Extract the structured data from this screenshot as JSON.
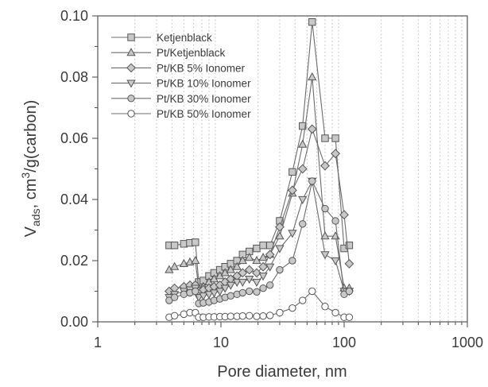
{
  "chart_data": {
    "type": "line",
    "xlabel": "Pore diameter, nm",
    "ylabel_main": "V",
    "ylabel_sub": "ads",
    "ylabel_rest": ", cm",
    "ylabel_sup": "3",
    "ylabel_tail": "/g(carbon)",
    "x_scale": "log",
    "xlim": [
      1,
      1000
    ],
    "ylim": [
      0,
      0.1
    ],
    "x_ticks": [
      1,
      10,
      100,
      1000
    ],
    "x_tick_labels": [
      "1",
      "10",
      "100",
      "1000"
    ],
    "y_ticks": [
      0,
      0.02,
      0.04,
      0.06,
      0.08,
      0.1
    ],
    "y_tick_labels": [
      "0.00",
      "0.02",
      "0.04",
      "0.06",
      "0.08",
      "0.10"
    ],
    "grid": "vertical dotted minor grid",
    "legend_position": "top-left",
    "series": [
      {
        "name": "Ketjenblack",
        "marker": "square",
        "fill": "#c8c8c8",
        "x": [
          3.8,
          4.2,
          5.0,
          5.6,
          6.2,
          6.6,
          7.2,
          8.0,
          8.8,
          9.8,
          10.8,
          12.0,
          13.5,
          15.0,
          17.0,
          19.5,
          22.0,
          25.0,
          30.0,
          38.0,
          46.0,
          55.0,
          70.0,
          85.0,
          100.0,
          110.0
        ],
        "y": [
          0.025,
          0.025,
          0.0255,
          0.0258,
          0.026,
          0.013,
          0.0135,
          0.015,
          0.016,
          0.017,
          0.018,
          0.019,
          0.02,
          0.022,
          0.023,
          0.024,
          0.025,
          0.025,
          0.033,
          0.049,
          0.064,
          0.098,
          0.06,
          0.06,
          0.024,
          0.025
        ]
      },
      {
        "name": "Pt/Ketjenblack",
        "marker": "triangle-up",
        "fill": "#c8c8c8",
        "x": [
          3.8,
          4.2,
          5.0,
          5.6,
          6.2,
          6.6,
          7.2,
          8.0,
          8.8,
          9.8,
          10.8,
          12.0,
          13.5,
          15.0,
          17.0,
          19.5,
          22.0,
          25.0,
          30.0,
          38.0,
          46.0,
          55.0,
          70.0,
          85.0,
          100.0,
          110.0
        ],
        "y": [
          0.017,
          0.018,
          0.019,
          0.0195,
          0.02,
          0.011,
          0.0115,
          0.013,
          0.014,
          0.015,
          0.016,
          0.017,
          0.018,
          0.02,
          0.021,
          0.02,
          0.021,
          0.022,
          0.028,
          0.042,
          0.058,
          0.08,
          0.028,
          0.028,
          0.011,
          0.011
        ]
      },
      {
        "name": "Pt/KB 5% Ionomer",
        "marker": "diamond",
        "fill": "#c8c8c8",
        "x": [
          3.8,
          4.2,
          5.0,
          5.6,
          6.2,
          6.6,
          7.2,
          8.0,
          8.8,
          9.8,
          10.8,
          12.0,
          13.5,
          15.0,
          17.0,
          19.5,
          22.0,
          25.0,
          30.0,
          38.0,
          46.0,
          55.0,
          70.0,
          85.0,
          100.0,
          110.0
        ],
        "y": [
          0.01,
          0.011,
          0.0115,
          0.012,
          0.012,
          0.01,
          0.0105,
          0.011,
          0.0115,
          0.012,
          0.013,
          0.014,
          0.015,
          0.016,
          0.017,
          0.016,
          0.018,
          0.022,
          0.031,
          0.043,
          0.05,
          0.063,
          0.051,
          0.055,
          0.035,
          0.019
        ]
      },
      {
        "name": "Pt/KB 10% Ionomer",
        "marker": "triangle-down",
        "fill": "#c8c8c8",
        "x": [
          3.8,
          4.2,
          5.0,
          5.6,
          6.2,
          6.6,
          7.2,
          8.0,
          8.8,
          9.8,
          10.8,
          12.0,
          13.5,
          15.0,
          17.0,
          19.5,
          22.0,
          25.0,
          30.0,
          38.0,
          46.0,
          55.0,
          70.0,
          85.0,
          100.0,
          110.0
        ],
        "y": [
          0.008,
          0.009,
          0.01,
          0.0105,
          0.011,
          0.008,
          0.0085,
          0.009,
          0.0095,
          0.01,
          0.011,
          0.012,
          0.013,
          0.013,
          0.014,
          0.013,
          0.015,
          0.018,
          0.024,
          0.029,
          0.04,
          0.046,
          0.022,
          0.02,
          0.01,
          0.01
        ]
      },
      {
        "name": "Pt/KB 30% Ionomer",
        "marker": "circle",
        "fill": "#c8c8c8",
        "x": [
          3.8,
          4.2,
          5.0,
          5.6,
          6.2,
          6.6,
          7.2,
          8.0,
          8.8,
          9.8,
          10.8,
          12.0,
          13.5,
          15.0,
          17.0,
          19.5,
          22.0,
          25.0,
          30.0,
          38.0,
          46.0,
          55.0,
          70.0,
          85.0,
          100.0,
          110.0
        ],
        "y": [
          0.007,
          0.008,
          0.009,
          0.0095,
          0.01,
          0.006,
          0.0062,
          0.0065,
          0.007,
          0.0075,
          0.008,
          0.0085,
          0.009,
          0.0095,
          0.01,
          0.0098,
          0.011,
          0.012,
          0.017,
          0.02,
          0.032,
          0.046,
          0.037,
          0.033,
          0.009,
          0.01
        ]
      },
      {
        "name": "Pt/KB 50% Ionomer",
        "marker": "circle-open",
        "fill": "#ffffff",
        "x": [
          3.8,
          4.2,
          5.0,
          5.6,
          6.2,
          6.6,
          7.2,
          8.0,
          8.8,
          9.8,
          10.8,
          12.0,
          13.5,
          15.0,
          17.0,
          19.5,
          22.0,
          25.0,
          30.0,
          38.0,
          46.0,
          55.0,
          70.0,
          85.0,
          100.0,
          110.0
        ],
        "y": [
          0.0015,
          0.002,
          0.0025,
          0.003,
          0.003,
          0.0015,
          0.0015,
          0.0016,
          0.0016,
          0.0017,
          0.0017,
          0.0018,
          0.0018,
          0.0019,
          0.002,
          0.0018,
          0.0019,
          0.0021,
          0.003,
          0.0045,
          0.007,
          0.01,
          0.005,
          0.003,
          0.0015,
          0.0015
        ]
      }
    ]
  }
}
